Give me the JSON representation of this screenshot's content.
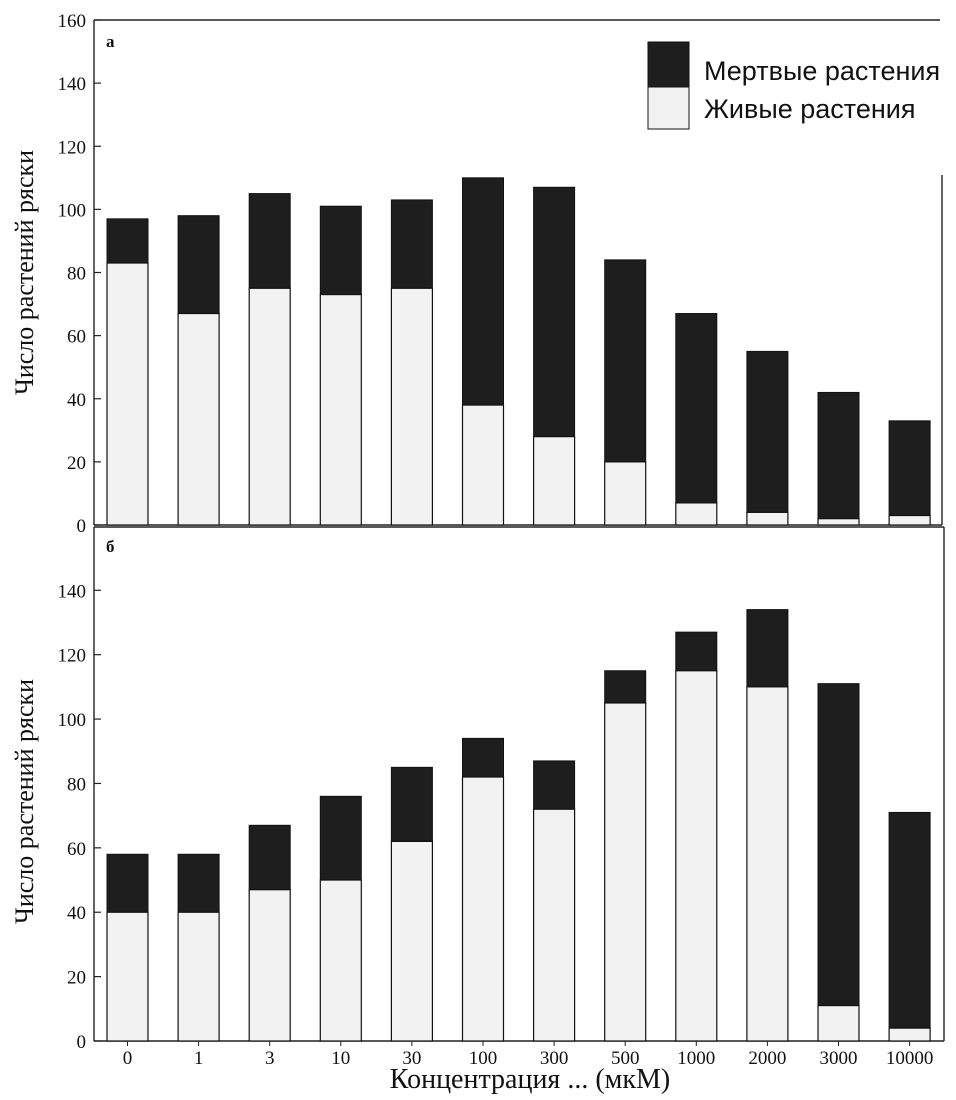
{
  "chart_data": [
    {
      "type": "bar",
      "stacked": true,
      "panel_label": "а",
      "ylabel": "Число растений ряски",
      "xlabel": "Концентрация ... (мкМ)",
      "ylim": [
        0,
        160
      ],
      "yticks": [
        0,
        20,
        40,
        60,
        80,
        100,
        120,
        140,
        160
      ],
      "categories": [
        "0",
        "1",
        "3",
        "10",
        "30",
        "100",
        "300",
        "500",
        "1000",
        "2000",
        "3000",
        "10000"
      ],
      "series": [
        {
          "name": "Живые растения",
          "color": "#f2f2f2",
          "values": [
            83,
            67,
            75,
            73,
            75,
            38,
            28,
            20,
            7,
            4,
            2,
            3
          ]
        },
        {
          "name": "Мертвые растения",
          "color": "#1e1e1e",
          "values": [
            14,
            31,
            30,
            28,
            28,
            72,
            79,
            64,
            60,
            51,
            40,
            30
          ]
        }
      ],
      "legend": {
        "position": "top-right",
        "entries": [
          "Мертвые растения",
          "Живые растения"
        ]
      }
    },
    {
      "type": "bar",
      "stacked": true,
      "panel_label": "б",
      "ylabel": "Число растений ряски",
      "xlabel": "Концентрация ... (мкМ)",
      "ylim": [
        0,
        155
      ],
      "yticks": [
        0,
        20,
        40,
        60,
        80,
        100,
        120,
        140
      ],
      "categories": [
        "0",
        "1",
        "3",
        "10",
        "30",
        "100",
        "300",
        "500",
        "1000",
        "2000",
        "3000",
        "10000"
      ],
      "series": [
        {
          "name": "Живые растения",
          "color": "#f2f2f2",
          "values": [
            40,
            40,
            47,
            50,
            62,
            82,
            72,
            105,
            115,
            110,
            11,
            4
          ]
        },
        {
          "name": "Мертвые растения",
          "color": "#1e1e1e",
          "values": [
            18,
            18,
            20,
            26,
            23,
            12,
            15,
            10,
            12,
            24,
            100,
            67
          ]
        }
      ]
    }
  ],
  "x_axis_title": "Концентрация ... (мкМ)"
}
